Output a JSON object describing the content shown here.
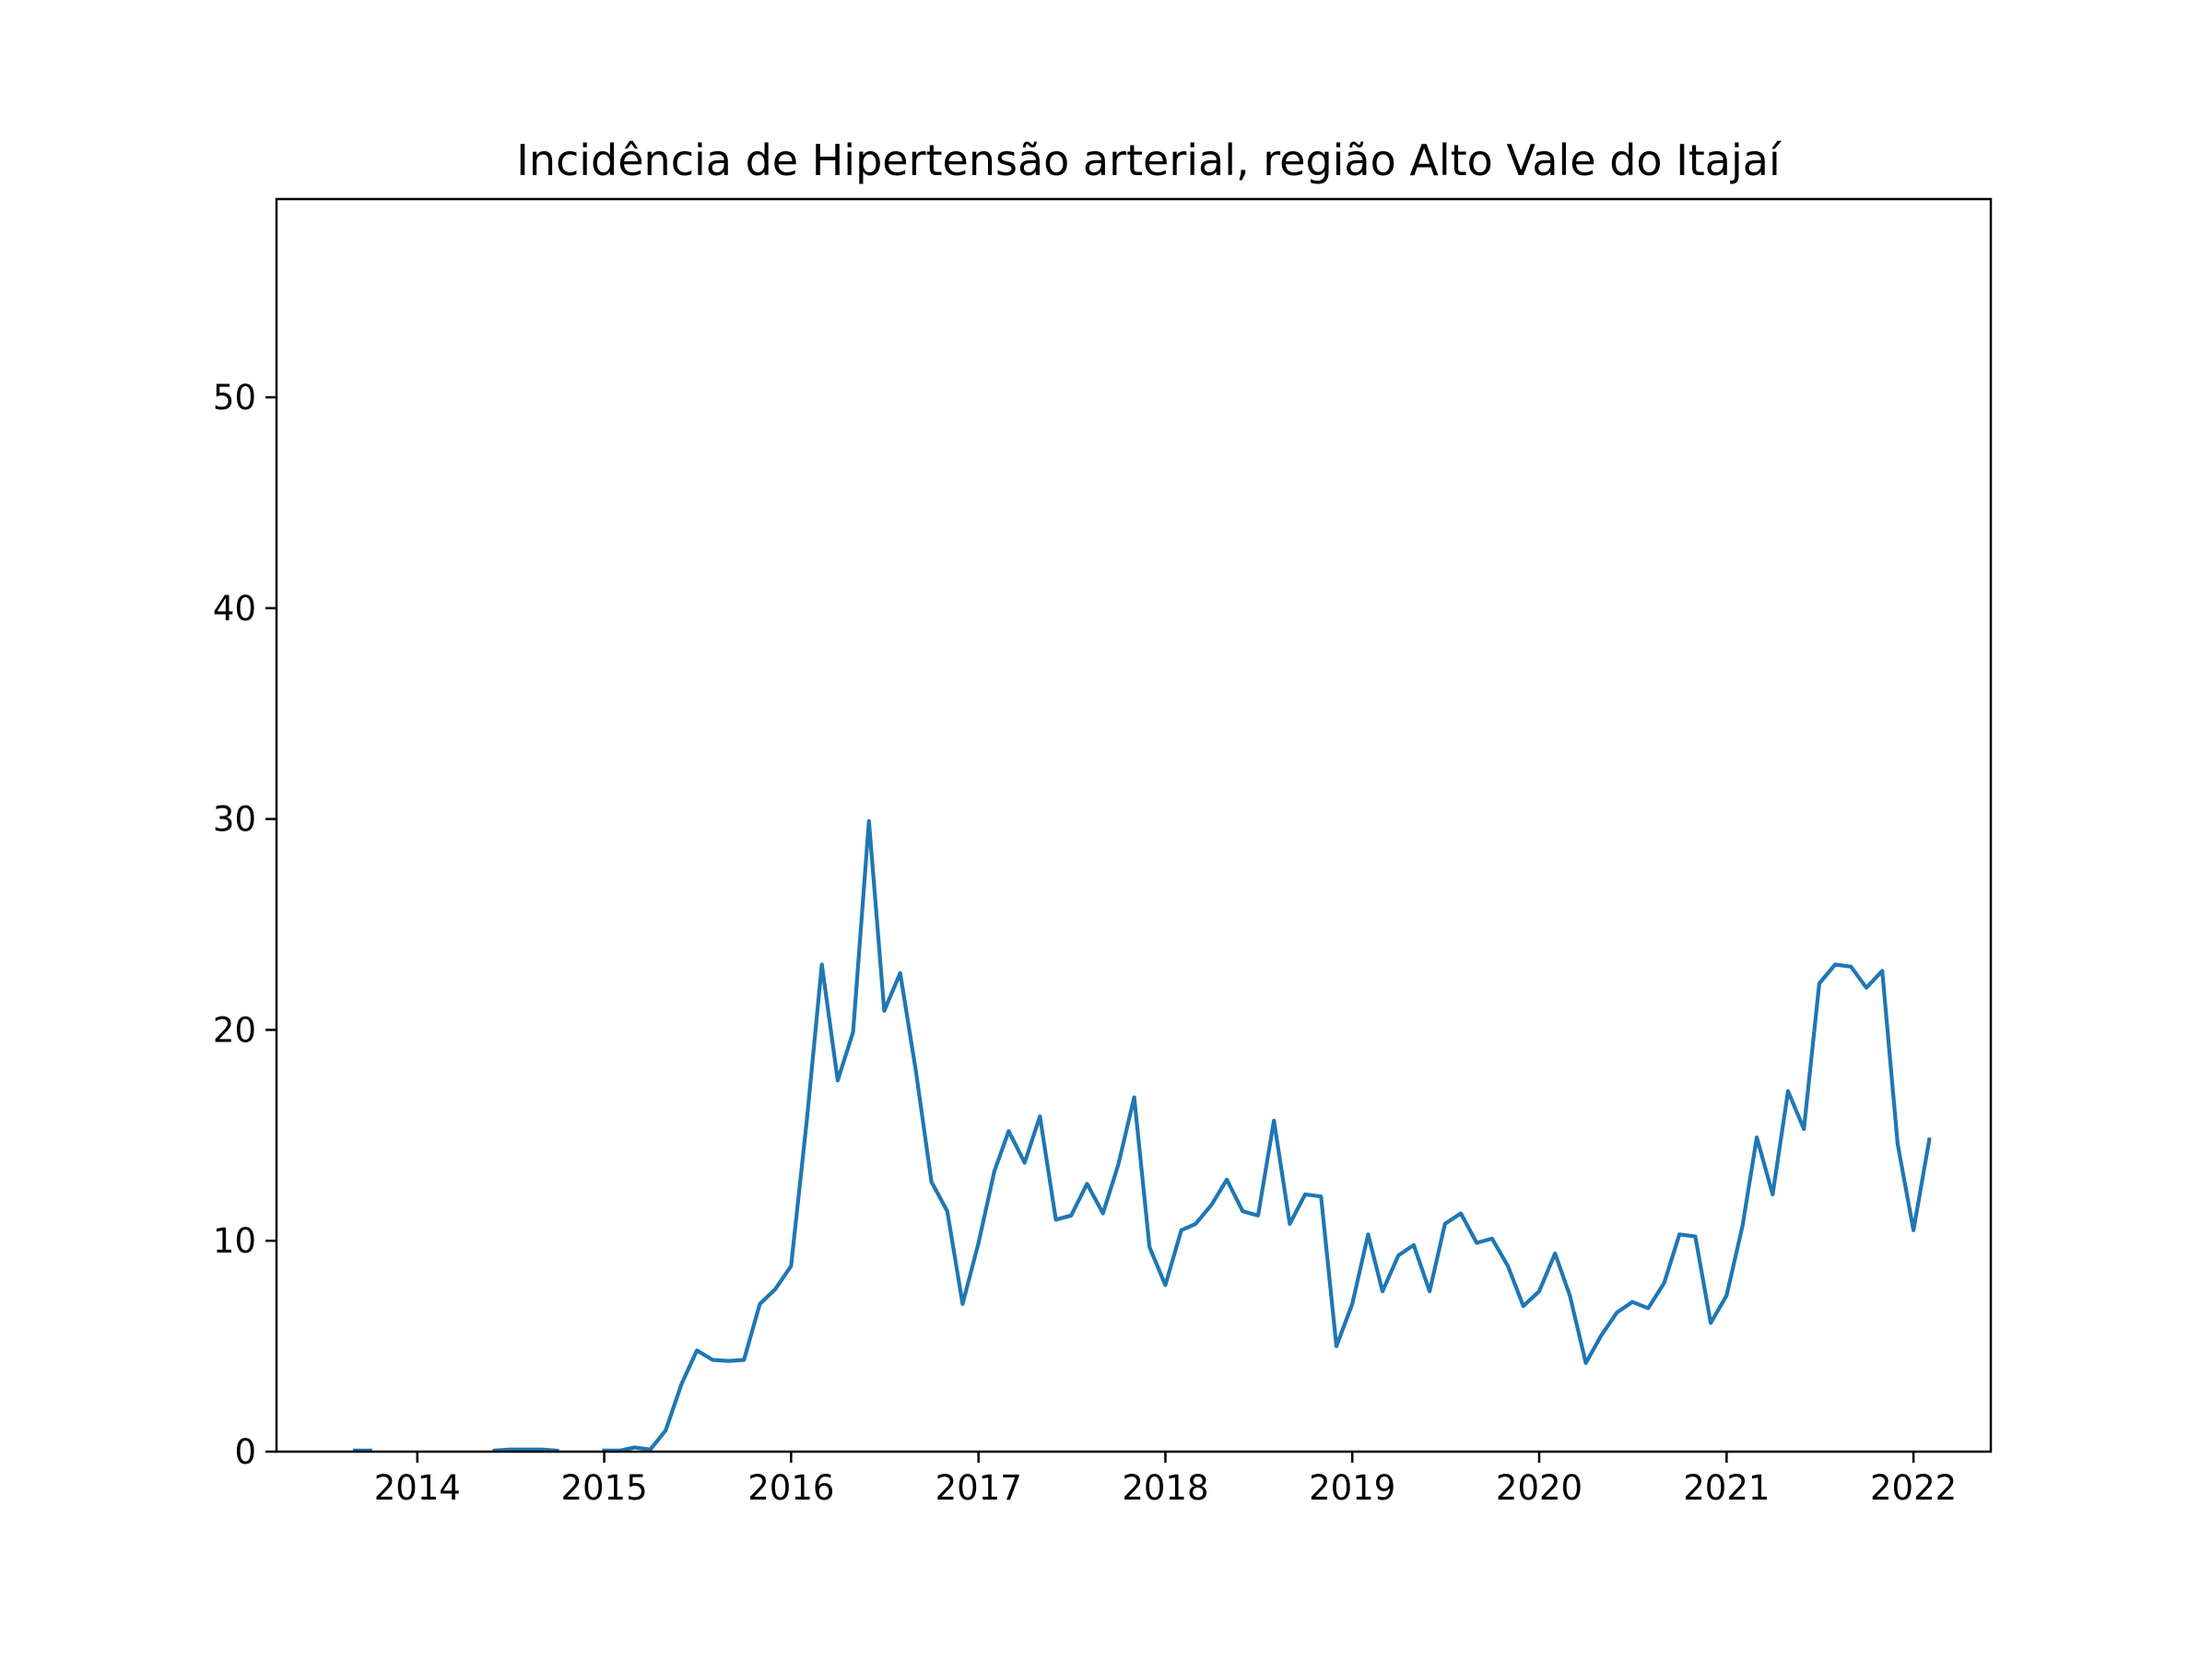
{
  "chart_data": {
    "type": "line",
    "title": "Incidência de Hipertensão arterial, região Alto Vale do Itajaí",
    "xlabel": "",
    "ylabel": "",
    "xlim": [
      "2013-04-01",
      "2022-06-01"
    ],
    "ylim": [
      0,
      59.4
    ],
    "x_ticks": [
      "2014",
      "2015",
      "2016",
      "2017",
      "2018",
      "2019",
      "2020",
      "2021",
      "2022"
    ],
    "y_ticks": [
      0,
      10,
      20,
      30,
      40,
      50
    ],
    "grid": false,
    "legend": "none",
    "line_color": "#1f77b4",
    "series": [
      {
        "segments": [
          [
            [
              "2013-09-01",
              0.05
            ],
            [
              "2013-10-01",
              0.05
            ]
          ],
          [
            [
              "2014-06-01",
              0.05
            ],
            [
              "2014-07-01",
              0.1
            ],
            [
              "2014-08-01",
              0.1
            ],
            [
              "2014-09-01",
              0.1
            ],
            [
              "2014-10-01",
              0.05
            ]
          ],
          [
            [
              "2015-01-01",
              0.05
            ],
            [
              "2015-02-01",
              0.05
            ],
            [
              "2015-03-01",
              0.2
            ],
            [
              "2015-04-01",
              0.1
            ],
            [
              "2015-05-01",
              1.0
            ],
            [
              "2015-06-01",
              3.2
            ],
            [
              "2015-07-01",
              4.8
            ],
            [
              "2015-08-01",
              4.35
            ],
            [
              "2015-09-01",
              4.3
            ],
            [
              "2015-10-01",
              4.35
            ],
            [
              "2015-11-01",
              7.0
            ],
            [
              "2015-12-01",
              7.7
            ],
            [
              "2016-01-01",
              8.8
            ],
            [
              "2016-02-01",
              15.8
            ],
            [
              "2016-03-01",
              23.1
            ],
            [
              "2016-04-01",
              17.6
            ],
            [
              "2016-05-01",
              19.9
            ],
            [
              "2016-06-01",
              29.9
            ],
            [
              "2016-07-01",
              20.9
            ],
            [
              "2016-08-01",
              22.7
            ],
            [
              "2016-09-01",
              18.0
            ],
            [
              "2016-10-01",
              12.8
            ],
            [
              "2016-11-01",
              11.4
            ],
            [
              "2016-12-01",
              7.0
            ],
            [
              "2017-01-01",
              9.9
            ],
            [
              "2017-02-01",
              13.3
            ],
            [
              "2017-03-01",
              15.2
            ],
            [
              "2017-04-01",
              13.7
            ],
            [
              "2017-05-01",
              15.9
            ],
            [
              "2017-06-01",
              11.0
            ],
            [
              "2017-07-01",
              11.2
            ],
            [
              "2017-08-01",
              12.7
            ],
            [
              "2017-09-01",
              11.3
            ],
            [
              "2017-10-01",
              13.6
            ],
            [
              "2017-11-01",
              16.8
            ],
            [
              "2017-12-01",
              9.7
            ],
            [
              "2018-01-01",
              7.9
            ],
            [
              "2018-02-01",
              10.5
            ],
            [
              "2018-03-01",
              10.8
            ],
            [
              "2018-04-01",
              11.7
            ],
            [
              "2018-05-01",
              12.9
            ],
            [
              "2018-06-01",
              11.4
            ],
            [
              "2018-07-01",
              11.2
            ],
            [
              "2018-08-01",
              15.7
            ],
            [
              "2018-09-01",
              10.8
            ],
            [
              "2018-10-01",
              12.2
            ],
            [
              "2018-11-01",
              12.1
            ],
            [
              "2018-12-01",
              5.0
            ],
            [
              "2019-01-01",
              7.0
            ],
            [
              "2019-02-01",
              10.3
            ],
            [
              "2019-03-01",
              7.6
            ],
            [
              "2019-04-01",
              9.3
            ],
            [
              "2019-05-01",
              9.8
            ],
            [
              "2019-06-01",
              7.6
            ],
            [
              "2019-07-01",
              10.8
            ],
            [
              "2019-08-01",
              11.3
            ],
            [
              "2019-09-01",
              9.9
            ],
            [
              "2019-10-01",
              10.1
            ],
            [
              "2019-11-01",
              8.8
            ],
            [
              "2019-12-01",
              6.9
            ],
            [
              "2020-01-01",
              7.6
            ],
            [
              "2020-02-01",
              9.4
            ],
            [
              "2020-03-01",
              7.4
            ],
            [
              "2020-04-01",
              4.2
            ],
            [
              "2020-05-01",
              5.5
            ],
            [
              "2020-06-01",
              6.6
            ],
            [
              "2020-07-01",
              7.1
            ],
            [
              "2020-08-01",
              6.8
            ],
            [
              "2020-09-01",
              8.0
            ],
            [
              "2020-10-01",
              10.3
            ],
            [
              "2020-11-01",
              10.2
            ],
            [
              "2020-12-01",
              6.1
            ],
            [
              "2021-01-01",
              7.4
            ],
            [
              "2021-02-01",
              10.7
            ],
            [
              "2021-03-01",
              14.9
            ],
            [
              "2021-04-01",
              12.2
            ],
            [
              "2021-05-01",
              17.1
            ],
            [
              "2021-06-01",
              15.3
            ],
            [
              "2021-07-01",
              22.2
            ],
            [
              "2021-08-01",
              23.1
            ],
            [
              "2021-09-01",
              23.0
            ],
            [
              "2021-10-01",
              22.0
            ],
            [
              "2021-11-01",
              22.8
            ],
            [
              "2021-12-01",
              14.6
            ],
            [
              "2022-01-01",
              10.5
            ],
            [
              "2022-02-01",
              14.8
            ]
          ]
        ]
      }
    ]
  }
}
